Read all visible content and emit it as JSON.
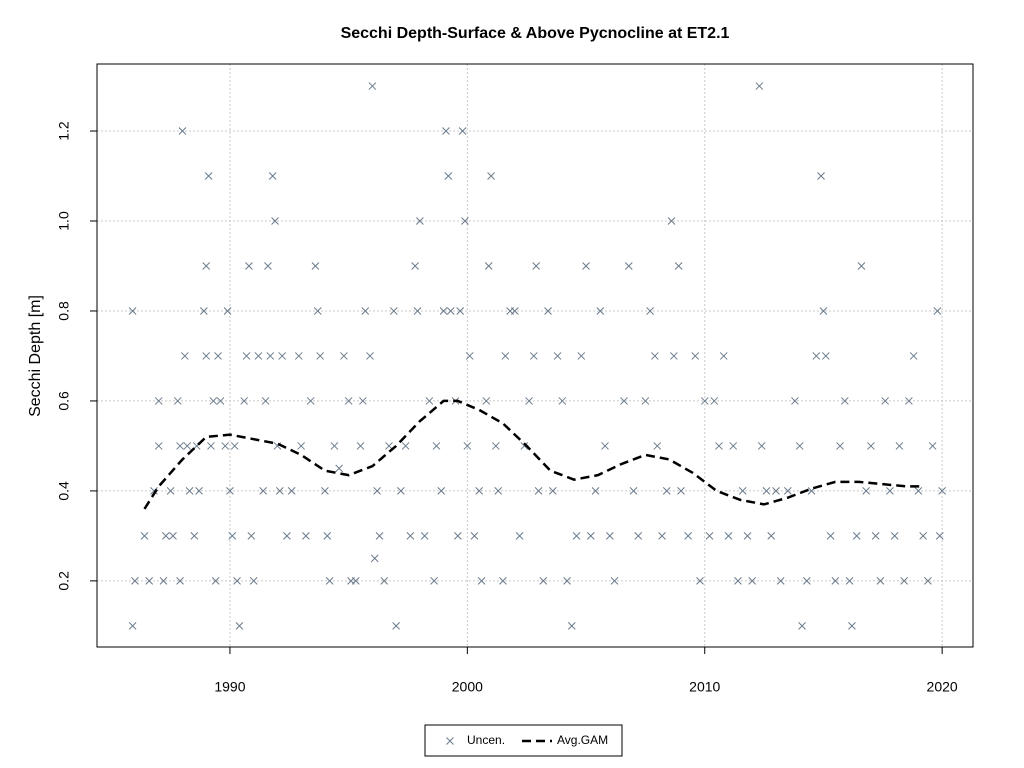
{
  "chart_data": {
    "type": "scatter",
    "title": "Secchi Depth-Surface & Above Pycnocline at ET2.1",
    "y_label": "Secchi Depth [m]",
    "xlim": [
      1984.4,
      2021.3
    ],
    "xticks": [
      1990,
      2000,
      2010,
      2020
    ],
    "ylim": [
      0.053,
      1.349
    ],
    "yticks": [
      0.2,
      0.4,
      0.6,
      0.8,
      {
        "value": 1,
        "label": "1.0"
      },
      1.2
    ],
    "grid": true,
    "legend": "bottom",
    "series": [
      {
        "name": "Uncen.",
        "type": "scatter",
        "color": "#6b7b8c",
        "x": [
          1985.9,
          1985.9,
          1986.0,
          1986.4,
          1986.6,
          1986.8,
          1987.0,
          1987.0,
          1987.2,
          1987.3,
          1987.5,
          1987.6,
          1987.8,
          1987.9,
          1987.9,
          1988.0,
          1988.1,
          1988.2,
          1988.3,
          1988.5,
          1988.6,
          1988.7,
          1988.9,
          1989.0,
          1989.0,
          1989.1,
          1989.2,
          1989.3,
          1989.4,
          1989.5,
          1989.6,
          1989.8,
          1989.9,
          1990.0,
          1990.1,
          1990.2,
          1990.3,
          1990.4,
          1990.6,
          1990.7,
          1990.8,
          1990.9,
          1991.0,
          1991.2,
          1991.4,
          1991.5,
          1991.6,
          1991.7,
          1991.8,
          1991.9,
          1992.0,
          1992.1,
          1992.2,
          1992.4,
          1992.6,
          1992.9,
          1993.0,
          1993.2,
          1993.4,
          1993.6,
          1993.7,
          1993.8,
          1994.0,
          1994.1,
          1994.2,
          1994.4,
          1994.6,
          1994.8,
          1995.0,
          1995.1,
          1995.3,
          1995.5,
          1995.6,
          1995.7,
          1995.9,
          1996.0,
          1996.1,
          1996.2,
          1996.3,
          1996.5,
          1996.7,
          1996.9,
          1997.0,
          1997.2,
          1997.4,
          1997.6,
          1997.8,
          1997.9,
          1998.0,
          1998.2,
          1998.4,
          1998.6,
          1998.7,
          1998.9,
          1999.0,
          1999.1,
          1999.2,
          1999.3,
          1999.5,
          1999.6,
          1999.7,
          1999.8,
          1999.9,
          2000.0,
          2000.1,
          2000.3,
          2000.5,
          2000.6,
          2000.8,
          2000.9,
          2001.0,
          2001.2,
          2001.3,
          2001.5,
          2001.6,
          2001.8,
          2002.0,
          2002.2,
          2002.4,
          2002.6,
          2002.8,
          2002.9,
          2003.0,
          2003.2,
          2003.4,
          2003.6,
          2003.8,
          2004.0,
          2004.2,
          2004.4,
          2004.6,
          2004.8,
          2005.0,
          2005.2,
          2005.4,
          2005.6,
          2005.8,
          2006.0,
          2006.2,
          2006.6,
          2006.8,
          2007.0,
          2007.2,
          2007.5,
          2007.7,
          2007.9,
          2008.0,
          2008.2,
          2008.4,
          2008.6,
          2008.7,
          2008.9,
          2009.0,
          2009.3,
          2009.6,
          2009.8,
          2010.0,
          2010.2,
          2010.4,
          2010.6,
          2010.8,
          2011.0,
          2011.2,
          2011.4,
          2011.6,
          2011.8,
          2012.0,
          2012.3,
          2012.4,
          2012.6,
          2012.8,
          2013.0,
          2013.2,
          2013.5,
          2013.8,
          2014.0,
          2014.1,
          2014.3,
          2014.5,
          2014.7,
          2014.9,
          2015.0,
          2015.1,
          2015.3,
          2015.5,
          2015.7,
          2015.9,
          2016.1,
          2016.2,
          2016.4,
          2016.6,
          2016.8,
          2017.0,
          2017.2,
          2017.4,
          2017.6,
          2017.8,
          2018.0,
          2018.2,
          2018.4,
          2018.6,
          2018.8,
          2019.0,
          2019.2,
          2019.4,
          2019.6,
          2019.8,
          2019.9,
          2020.0
        ],
        "values": [
          0.8,
          0.1,
          0.2,
          0.3,
          0.2,
          0.4,
          0.6,
          0.5,
          0.2,
          0.3,
          0.4,
          0.3,
          0.6,
          0.2,
          0.5,
          1.2,
          0.7,
          0.5,
          0.4,
          0.3,
          0.5,
          0.4,
          0.8,
          0.9,
          0.7,
          1.1,
          0.5,
          0.6,
          0.2,
          0.7,
          0.6,
          0.5,
          0.8,
          0.4,
          0.3,
          0.5,
          0.2,
          0.1,
          0.6,
          0.7,
          0.9,
          0.3,
          0.2,
          0.7,
          0.4,
          0.6,
          0.9,
          0.7,
          1.1,
          1.0,
          0.5,
          0.4,
          0.7,
          0.3,
          0.4,
          0.7,
          0.5,
          0.3,
          0.6,
          0.9,
          0.8,
          0.7,
          0.4,
          0.3,
          0.2,
          0.5,
          0.45,
          0.7,
          0.6,
          0.2,
          0.2,
          0.5,
          0.6,
          0.8,
          0.7,
          1.3,
          0.25,
          0.4,
          0.3,
          0.2,
          0.5,
          0.8,
          0.1,
          0.4,
          0.5,
          0.3,
          0.9,
          0.8,
          1.0,
          0.3,
          0.6,
          0.2,
          0.5,
          0.4,
          0.8,
          1.2,
          1.1,
          0.8,
          0.6,
          0.3,
          0.8,
          1.2,
          1.0,
          0.5,
          0.7,
          0.3,
          0.4,
          0.2,
          0.6,
          0.9,
          1.1,
          0.5,
          0.4,
          0.2,
          0.7,
          0.8,
          0.8,
          0.3,
          0.5,
          0.6,
          0.7,
          0.9,
          0.4,
          0.2,
          0.8,
          0.4,
          0.7,
          0.6,
          0.2,
          0.1,
          0.3,
          0.7,
          0.9,
          0.3,
          0.4,
          0.8,
          0.5,
          0.3,
          0.2,
          0.6,
          0.9,
          0.4,
          0.3,
          0.6,
          0.8,
          0.7,
          0.5,
          0.3,
          0.4,
          1.0,
          0.7,
          0.9,
          0.4,
          0.3,
          0.7,
          0.2,
          0.6,
          0.3,
          0.6,
          0.5,
          0.7,
          0.3,
          0.5,
          0.2,
          0.4,
          0.3,
          0.2,
          1.3,
          0.5,
          0.4,
          0.3,
          0.4,
          0.2,
          0.4,
          0.6,
          0.5,
          0.1,
          0.2,
          0.4,
          0.7,
          1.1,
          0.8,
          0.7,
          0.3,
          0.2,
          0.5,
          0.6,
          0.2,
          0.1,
          0.3,
          0.9,
          0.4,
          0.5,
          0.3,
          0.2,
          0.6,
          0.4,
          0.3,
          0.5,
          0.2,
          0.6,
          0.7,
          0.4,
          0.3,
          0.2,
          0.5,
          0.8,
          0.3,
          0.4
        ]
      },
      {
        "name": "Avg.GAM",
        "type": "line",
        "color": "#000000",
        "x": [
          1986.4,
          1987,
          1988,
          1988.6,
          1989,
          1990,
          1991,
          1992,
          1993,
          1994,
          1995,
          1996,
          1997,
          1998,
          1999,
          1999.6,
          2000.5,
          2001.5,
          2002.5,
          2003.5,
          2004.5,
          2005.5,
          2006.5,
          2007.5,
          2008.5,
          2009.5,
          2010.5,
          2011.5,
          2012.5,
          2013.5,
          2014.5,
          2015.5,
          2016.5,
          2017.5,
          2018.5,
          2019.2
        ],
        "values": [
          0.36,
          0.41,
          0.47,
          0.5,
          0.52,
          0.525,
          0.515,
          0.505,
          0.48,
          0.445,
          0.435,
          0.455,
          0.5,
          0.555,
          0.6,
          0.6,
          0.58,
          0.55,
          0.5,
          0.445,
          0.425,
          0.435,
          0.46,
          0.48,
          0.47,
          0.44,
          0.4,
          0.38,
          0.37,
          0.385,
          0.405,
          0.42,
          0.42,
          0.415,
          0.41,
          0.41
        ]
      }
    ]
  }
}
